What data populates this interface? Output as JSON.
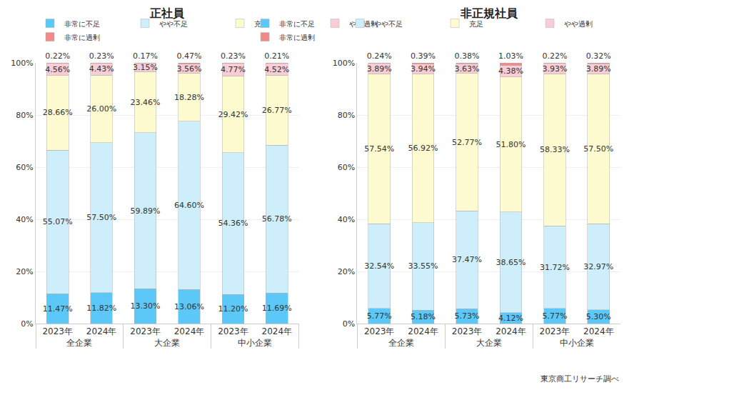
{
  "chart_data": [
    {
      "type": "bar",
      "title": "正社員",
      "categories": [
        [
          "全企業",
          "2023年"
        ],
        [
          "全企業",
          "2024年"
        ],
        [
          "大企業",
          "2023年"
        ],
        [
          "大企業",
          "2024年"
        ],
        [
          "中小企業",
          "2023年"
        ],
        [
          "中小企業",
          "2024年"
        ]
      ],
      "series": [
        {
          "name": "非常に不足",
          "color": "#5bc8f7",
          "values": [
            11.47,
            11.82,
            13.3,
            13.06,
            11.2,
            11.69
          ],
          "value_labels": [
            "11.47%",
            "11.82%",
            "13.30%",
            "13.06%",
            "11.20%",
            "11.69%"
          ]
        },
        {
          "name": "やや不足",
          "color": "#cfeefc",
          "values": [
            55.07,
            57.5,
            59.89,
            64.6,
            54.36,
            56.78
          ],
          "value_labels": [
            "55.07%",
            "57.50%",
            "59.89%",
            "64.60%",
            "54.36%",
            "56.78%"
          ]
        },
        {
          "name": "充足",
          "color": "#fdfbcf",
          "values": [
            28.66,
            26.0,
            23.46,
            18.28,
            29.42,
            26.77
          ],
          "value_labels": [
            "28.66%",
            "26.00%",
            "23.46%",
            "18.28%",
            "29.42%",
            "26.77%"
          ]
        },
        {
          "name": "やや過剰",
          "color": "#f9cdd6",
          "values": [
            4.56,
            4.43,
            3.15,
            3.56,
            4.77,
            4.52
          ],
          "value_labels": [
            "4.56%",
            "4.43%",
            "3.15%",
            "3.56%",
            "4.77%",
            "4.52%"
          ]
        },
        {
          "name": "非常に過剰",
          "color": "#f08a8a",
          "values": [
            0.22,
            0.23,
            0.17,
            0.47,
            0.23,
            0.21
          ],
          "value_labels": [
            "0.22%",
            "0.23%",
            "0.17%",
            "0.47%",
            "0.23%",
            "0.21%"
          ]
        }
      ],
      "ylim": [
        0,
        100
      ],
      "yticks": [
        {
          "value": 0,
          "label": "0%"
        },
        {
          "value": 20,
          "label": "20%"
        },
        {
          "value": 40,
          "label": "40%"
        },
        {
          "value": 60,
          "label": "60%"
        },
        {
          "value": 80,
          "label": "80%"
        },
        {
          "value": 100,
          "label": "100%"
        }
      ],
      "stacked": true,
      "data_labels": true,
      "grid": true,
      "legend": "top"
    },
    {
      "type": "bar",
      "title": "非正規社員",
      "categories": [
        [
          "全企業",
          "2023年"
        ],
        [
          "全企業",
          "2024年"
        ],
        [
          "大企業",
          "2023年"
        ],
        [
          "大企業",
          "2024年"
        ],
        [
          "中小企業",
          "2023年"
        ],
        [
          "中小企業",
          "2024年"
        ]
      ],
      "series": [
        {
          "name": "非常に不足",
          "color": "#5bc8f7",
          "values": [
            5.77,
            5.18,
            5.73,
            4.12,
            5.77,
            5.3
          ],
          "value_labels": [
            "5.77%",
            "5.18%",
            "5.73%",
            "4.12%",
            "5.77%",
            "5.30%"
          ]
        },
        {
          "name": "やや不足",
          "color": "#cfeefc",
          "values": [
            32.54,
            33.55,
            37.47,
            38.65,
            31.72,
            32.97
          ],
          "value_labels": [
            "32.54%",
            "33.55%",
            "37.47%",
            "38.65%",
            "31.72%",
            "32.97%"
          ]
        },
        {
          "name": "充足",
          "color": "#fdfbcf",
          "values": [
            57.54,
            56.92,
            52.77,
            51.8,
            58.33,
            57.5
          ],
          "value_labels": [
            "57.54%",
            "56.92%",
            "52.77%",
            "51.80%",
            "58.33%",
            "57.50%"
          ]
        },
        {
          "name": "やや過剰",
          "color": "#f9cdd6",
          "values": [
            3.89,
            3.94,
            3.63,
            4.38,
            3.93,
            3.89
          ],
          "value_labels": [
            "3.89%",
            "3.94%",
            "3.63%",
            "4.38%",
            "3.93%",
            "3.89%"
          ]
        },
        {
          "name": "非常に過剰",
          "color": "#f08a8a",
          "values": [
            0.24,
            0.39,
            0.38,
            1.03,
            0.22,
            0.32
          ],
          "value_labels": [
            "0.24%",
            "0.39%",
            "0.38%",
            "1.03%",
            "0.22%",
            "0.32%"
          ]
        }
      ],
      "ylim": [
        0,
        100
      ],
      "yticks": [
        {
          "value": 0,
          "label": "0%"
        },
        {
          "value": 20,
          "label": "20%"
        },
        {
          "value": 40,
          "label": "40%"
        },
        {
          "value": 60,
          "label": "60%"
        },
        {
          "value": 80,
          "label": "80%"
        },
        {
          "value": 100,
          "label": "100%"
        }
      ],
      "stacked": true,
      "data_labels": true,
      "grid": true,
      "legend": "top"
    }
  ],
  "source": "東京商工リサーチ調べ"
}
